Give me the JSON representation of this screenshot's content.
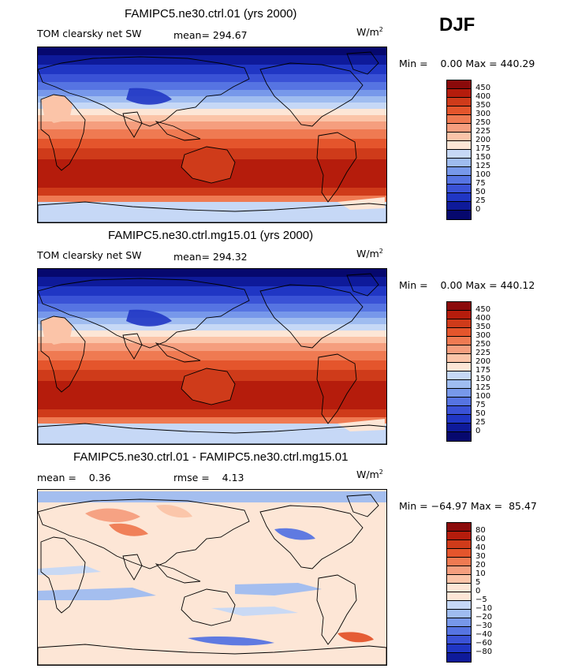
{
  "season": "DJF",
  "panels": [
    {
      "title": "FAMIPC5.ne30.ctrl.01 (yrs 2000)",
      "variable": "TOM clearsky net SW",
      "stat": "mean= 294.67",
      "units": "W/m",
      "units_exp": "2",
      "minmax": "Min =    0.00 Max = 440.29",
      "type": "field",
      "colorbar": {
        "labels": [
          "450",
          "400",
          "350",
          "300",
          "250",
          "225",
          "200",
          "175",
          "150",
          "125",
          "100",
          "75",
          "50",
          "25",
          "0"
        ],
        "colors": [
          "#8b0a0a",
          "#b51c0c",
          "#cf3b1a",
          "#e4552c",
          "#ef7a52",
          "#f59e7e",
          "#fbc4a8",
          "#fde6d6",
          "#c6d8f6",
          "#9fbcf0",
          "#7798ea",
          "#5674e2",
          "#3a52d6",
          "#2036c4",
          "#0e1a9a",
          "#06086e"
        ]
      }
    },
    {
      "title": "FAMIPC5.ne30.ctrl.mg15.01 (yrs 2000)",
      "variable": "TOM clearsky net SW",
      "stat": "mean= 294.32",
      "units": "W/m",
      "units_exp": "2",
      "minmax": "Min =    0.00 Max = 440.12",
      "type": "field",
      "colorbar": {
        "labels": [
          "450",
          "400",
          "350",
          "300",
          "250",
          "225",
          "200",
          "175",
          "150",
          "125",
          "100",
          "75",
          "50",
          "25",
          "0"
        ],
        "colors": [
          "#8b0a0a",
          "#b51c0c",
          "#cf3b1a",
          "#e4552c",
          "#ef7a52",
          "#f59e7e",
          "#fbc4a8",
          "#fde6d6",
          "#c6d8f6",
          "#9fbcf0",
          "#7798ea",
          "#5674e2",
          "#3a52d6",
          "#2036c4",
          "#0e1a9a",
          "#06086e"
        ]
      }
    },
    {
      "title": "FAMIPC5.ne30.ctrl.01 - FAMIPC5.ne30.ctrl.mg15.01",
      "stat_mean": "mean =    0.36",
      "stat_rmse": "rmse =    4.13",
      "units": "W/m",
      "units_exp": "2",
      "minmax": "Min = −64.97 Max =  85.47",
      "type": "diff",
      "colorbar": {
        "labels": [
          "80",
          "60",
          "40",
          "30",
          "20",
          "10",
          "5",
          "0",
          "−5",
          "−10",
          "−20",
          "−30",
          "−40",
          "−60",
          "−80"
        ],
        "colors": [
          "#8b0a0a",
          "#b51c0c",
          "#cf3b1a",
          "#e4552c",
          "#ef7a52",
          "#f59e7e",
          "#fbc4a8",
          "#fde6d6",
          "#fde6d6",
          "#c6d8f6",
          "#9fbcf0",
          "#7798ea",
          "#5674e2",
          "#3a52d6",
          "#2036c4",
          "#0e1a9a"
        ]
      }
    }
  ]
}
